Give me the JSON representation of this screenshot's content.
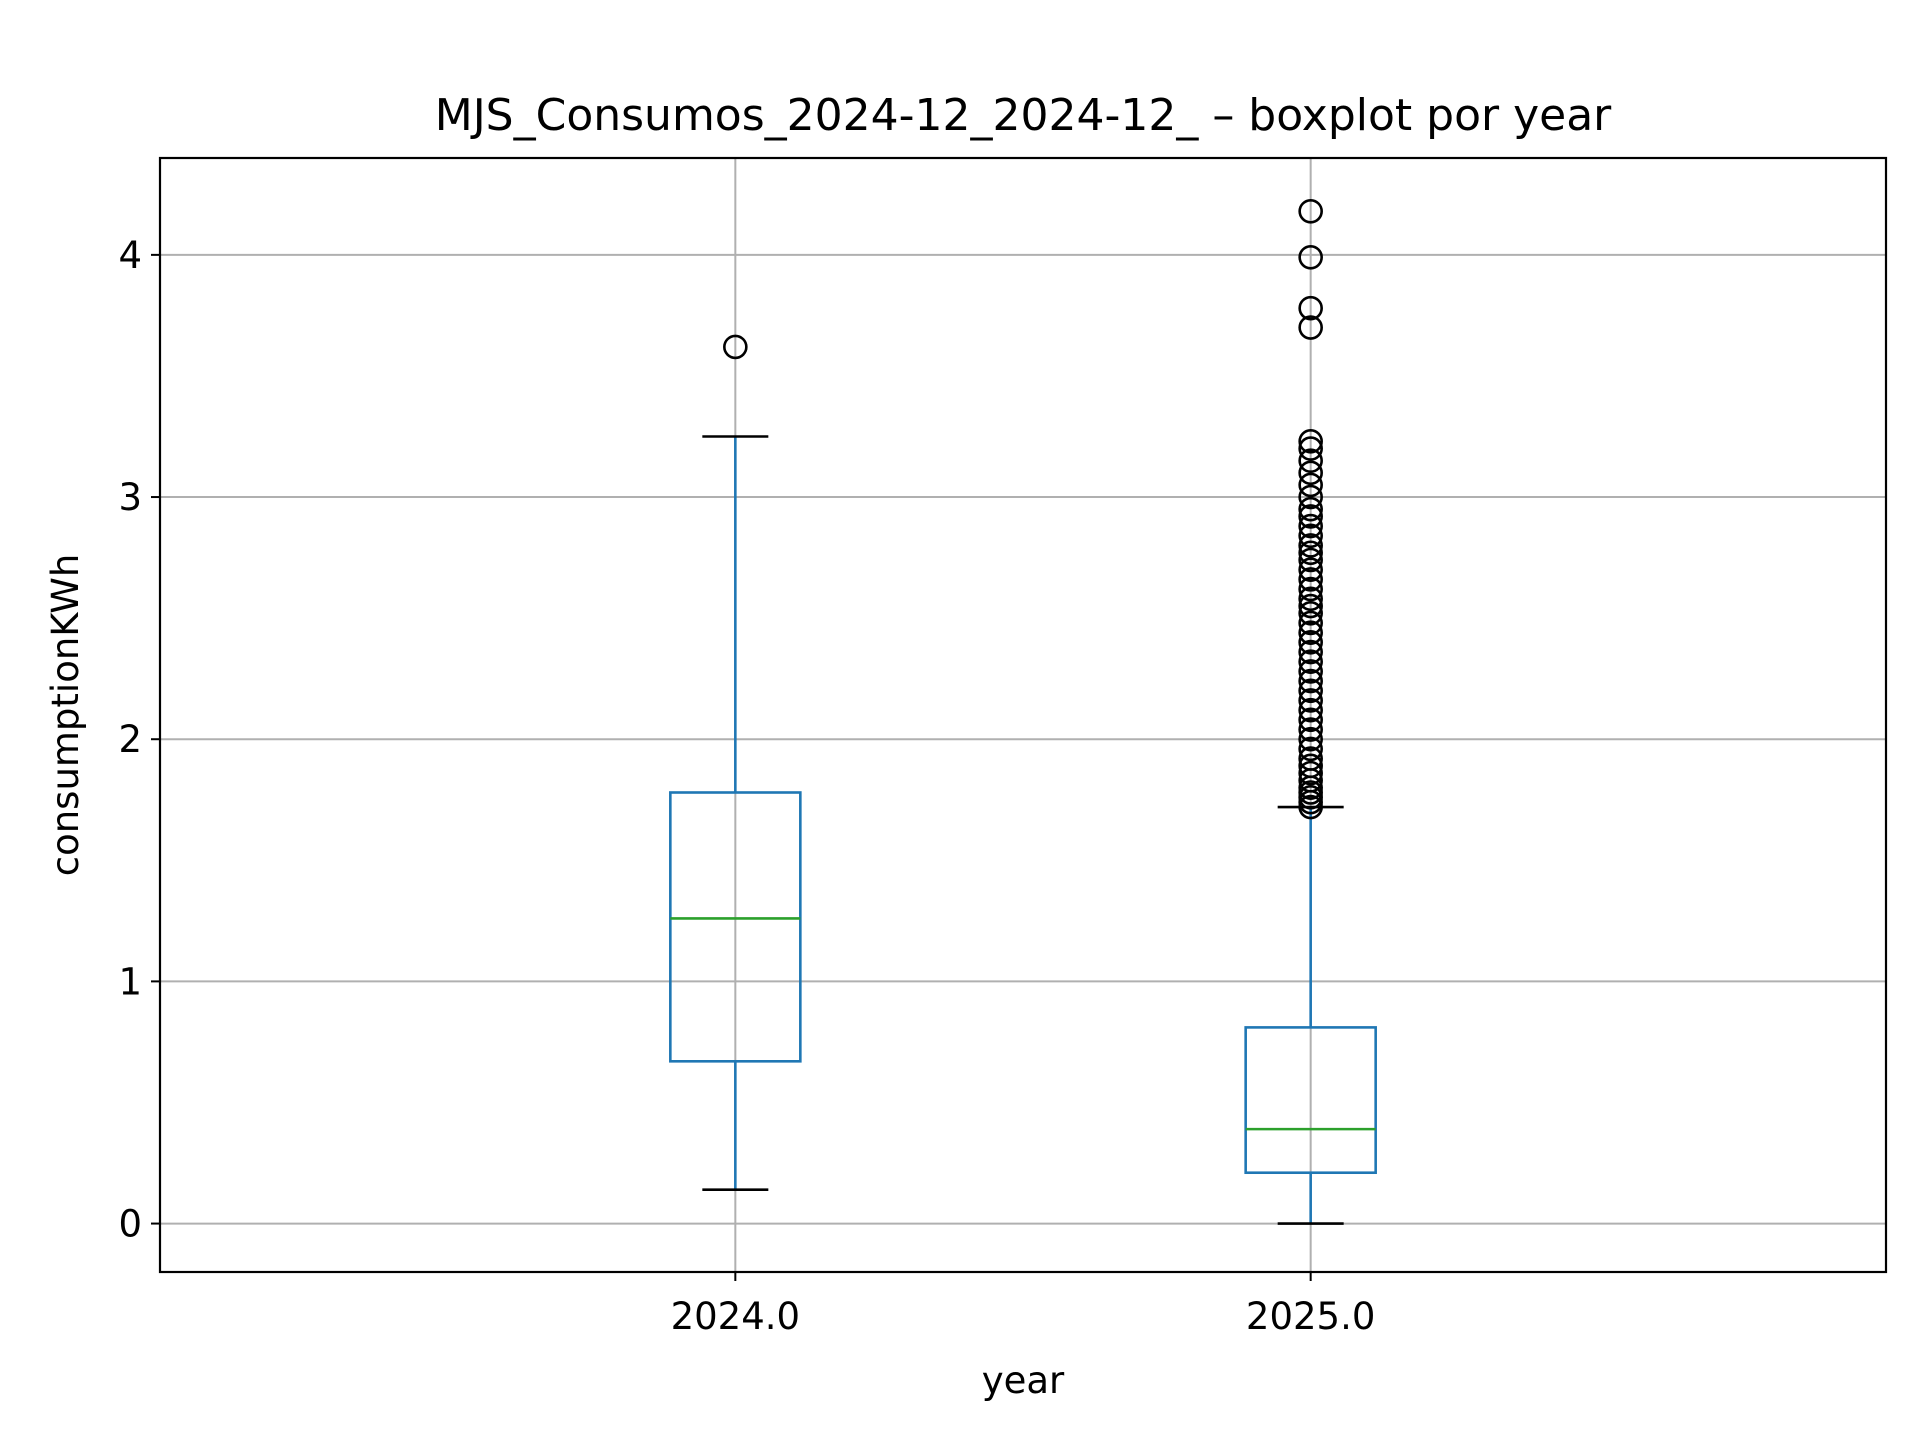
{
  "chart_data": {
    "type": "boxplot",
    "title": "MJS_Consumos_2024-12_2024-12_ – boxplot por year",
    "xlabel": "year",
    "ylabel": "consumptionKWh",
    "categories": [
      "2024.0",
      "2025.0"
    ],
    "ylim": [
      -0.2,
      4.4
    ],
    "yticks": [
      0,
      1,
      2,
      3,
      4
    ],
    "grid": true,
    "boxes": [
      {
        "category": "2024.0",
        "whisker_low": 0.14,
        "q1": 0.67,
        "median": 1.26,
        "q3": 1.78,
        "whisker_high": 3.25,
        "outliers": [
          3.62
        ]
      },
      {
        "category": "2025.0",
        "whisker_low": 0.0,
        "q1": 0.21,
        "median": 0.39,
        "q3": 0.81,
        "whisker_high": 1.72,
        "outliers": [
          4.18,
          3.99,
          3.78,
          3.7,
          3.23,
          3.2,
          3.15,
          3.1,
          3.05,
          3.0,
          2.95,
          2.92,
          2.88,
          2.84,
          2.8,
          2.77,
          2.74,
          2.7,
          2.66,
          2.62,
          2.58,
          2.55,
          2.52,
          2.48,
          2.44,
          2.4,
          2.36,
          2.32,
          2.28,
          2.24,
          2.2,
          2.16,
          2.12,
          2.08,
          2.04,
          2.0,
          1.96,
          1.92,
          1.89,
          1.86,
          1.83,
          1.8,
          1.78,
          1.76,
          1.74,
          1.72
        ]
      }
    ],
    "colors": {
      "box": "#1f77b4",
      "median": "#2ca02c",
      "cap": "#000000",
      "outlier": "#000000",
      "grid": "#b0b0b0"
    }
  }
}
